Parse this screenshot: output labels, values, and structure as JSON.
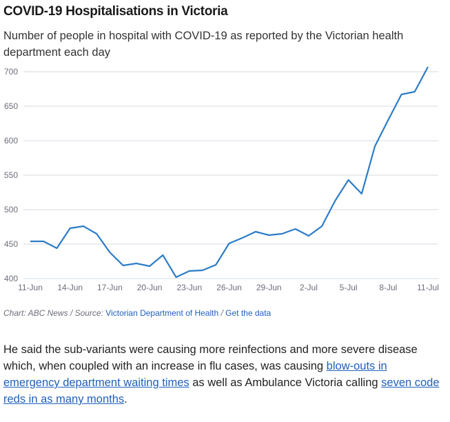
{
  "chart_data": {
    "type": "line",
    "title": "COVID-19 Hospitalisations in Victoria",
    "subtitle": "Number of people in hospital with COVID-19 as reported by the Victorian health department each day",
    "x": [
      "11-Jun",
      "12-Jun",
      "13-Jun",
      "14-Jun",
      "15-Jun",
      "16-Jun",
      "17-Jun",
      "18-Jun",
      "19-Jun",
      "20-Jun",
      "21-Jun",
      "22-Jun",
      "23-Jun",
      "24-Jun",
      "25-Jun",
      "26-Jun",
      "27-Jun",
      "28-Jun",
      "29-Jun",
      "30-Jun",
      "1-Jul",
      "2-Jul",
      "3-Jul",
      "4-Jul",
      "5-Jul",
      "6-Jul",
      "7-Jul",
      "8-Jul",
      "9-Jul",
      "10-Jul",
      "11-Jul"
    ],
    "series": [
      {
        "name": "Hospitalisations",
        "color": "#2b7bc6",
        "values": [
          454,
          454,
          444,
          473,
          476,
          465,
          438,
          419,
          422,
          418,
          434,
          402,
          411,
          412,
          420,
          451,
          459,
          468,
          463,
          465,
          472,
          462,
          476,
          513,
          543,
          523,
          592,
          630,
          667,
          671,
          707
        ]
      }
    ],
    "xticks": [
      "11-Jun",
      "14-Jun",
      "17-Jun",
      "20-Jun",
      "23-Jun",
      "26-Jun",
      "29-Jun",
      "2-Jul",
      "5-Jul",
      "8-Jul",
      "11-Jul"
    ],
    "yticks": [
      400,
      450,
      500,
      550,
      600,
      650,
      700
    ],
    "ylim": [
      400,
      700
    ],
    "grid": true,
    "xlabel": "",
    "ylabel": ""
  },
  "source": {
    "prefix": "Chart: ABC News / Source: ",
    "link1": "Victorian Department of Health",
    "sep": " / ",
    "link2": "Get the data"
  },
  "article": {
    "t1": "He said the sub-variants were causing more reinfections and more severe disease which, when coupled with an increase in flu cases, was causing ",
    "l1": "blow-outs in emergency department waiting times",
    "t2": " as well as Ambulance Victoria calling ",
    "l2": "seven code reds in as many months",
    "t3": "."
  }
}
